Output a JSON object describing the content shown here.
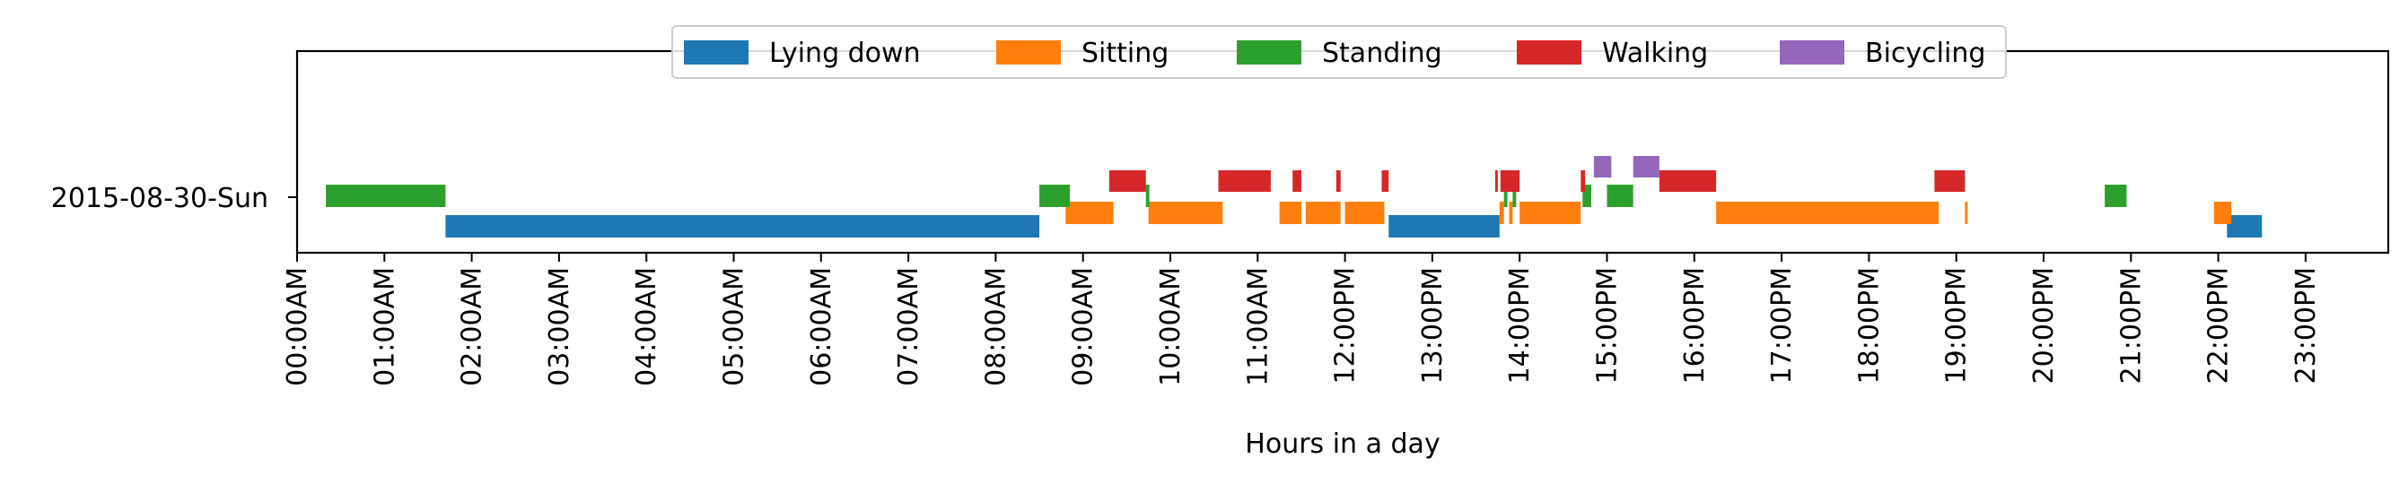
{
  "chart_data": {
    "type": "timeline",
    "xlabel": "Hours in a day",
    "xlim": [
      0,
      24
    ],
    "x_tick_labels": [
      "00:00AM",
      "01:00AM",
      "02:00AM",
      "03:00AM",
      "04:00AM",
      "05:00AM",
      "06:00AM",
      "07:00AM",
      "08:00AM",
      "09:00AM",
      "10:00AM",
      "11:00AM",
      "12:00PM",
      "13:00PM",
      "14:00PM",
      "15:00PM",
      "16:00PM",
      "17:00PM",
      "18:00PM",
      "19:00PM",
      "20:00PM",
      "21:00PM",
      "22:00PM",
      "23:00PM"
    ],
    "y_tick_label": "2015-08-30-Sun",
    "legend_position": "top-center",
    "series": [
      {
        "name": "Lying down",
        "color": "#1f77b4",
        "lane": 0,
        "segments": [
          [
            1.7,
            8.5
          ],
          [
            12.5,
            13.77
          ],
          [
            22.1,
            22.5
          ]
        ]
      },
      {
        "name": "Sitting",
        "color": "#ff7f0e",
        "lane": 1,
        "segments": [
          [
            8.8,
            9.35
          ],
          [
            9.75,
            10.6
          ],
          [
            11.25,
            11.5
          ],
          [
            11.55,
            11.95
          ],
          [
            12.0,
            12.45
          ],
          [
            13.77,
            13.82
          ],
          [
            13.88,
            13.92
          ],
          [
            14.0,
            14.7
          ],
          [
            16.25,
            18.8
          ],
          [
            19.1,
            19.13
          ],
          [
            21.95,
            22.15
          ]
        ]
      },
      {
        "name": "Standing",
        "color": "#2ca02c",
        "lane": 2,
        "segments": [
          [
            0.33,
            1.7
          ],
          [
            8.5,
            8.85
          ],
          [
            9.72,
            9.76
          ],
          [
            13.82,
            13.86
          ],
          [
            13.92,
            13.96
          ],
          [
            14.72,
            14.82
          ],
          [
            15.0,
            15.3
          ],
          [
            20.7,
            20.95
          ]
        ]
      },
      {
        "name": "Walking",
        "color": "#d62728",
        "lane": 3,
        "segments": [
          [
            9.3,
            9.72
          ],
          [
            10.55,
            11.15
          ],
          [
            11.4,
            11.5
          ],
          [
            11.9,
            11.95
          ],
          [
            12.42,
            12.5
          ],
          [
            13.72,
            13.75
          ],
          [
            13.78,
            14.0
          ],
          [
            14.7,
            14.75
          ],
          [
            15.6,
            16.25
          ],
          [
            18.75,
            19.1
          ]
        ]
      },
      {
        "name": "Bicycling",
        "color": "#9467bd",
        "lane": 4,
        "segments": [
          [
            14.85,
            15.05
          ],
          [
            15.3,
            15.6
          ]
        ]
      }
    ]
  }
}
